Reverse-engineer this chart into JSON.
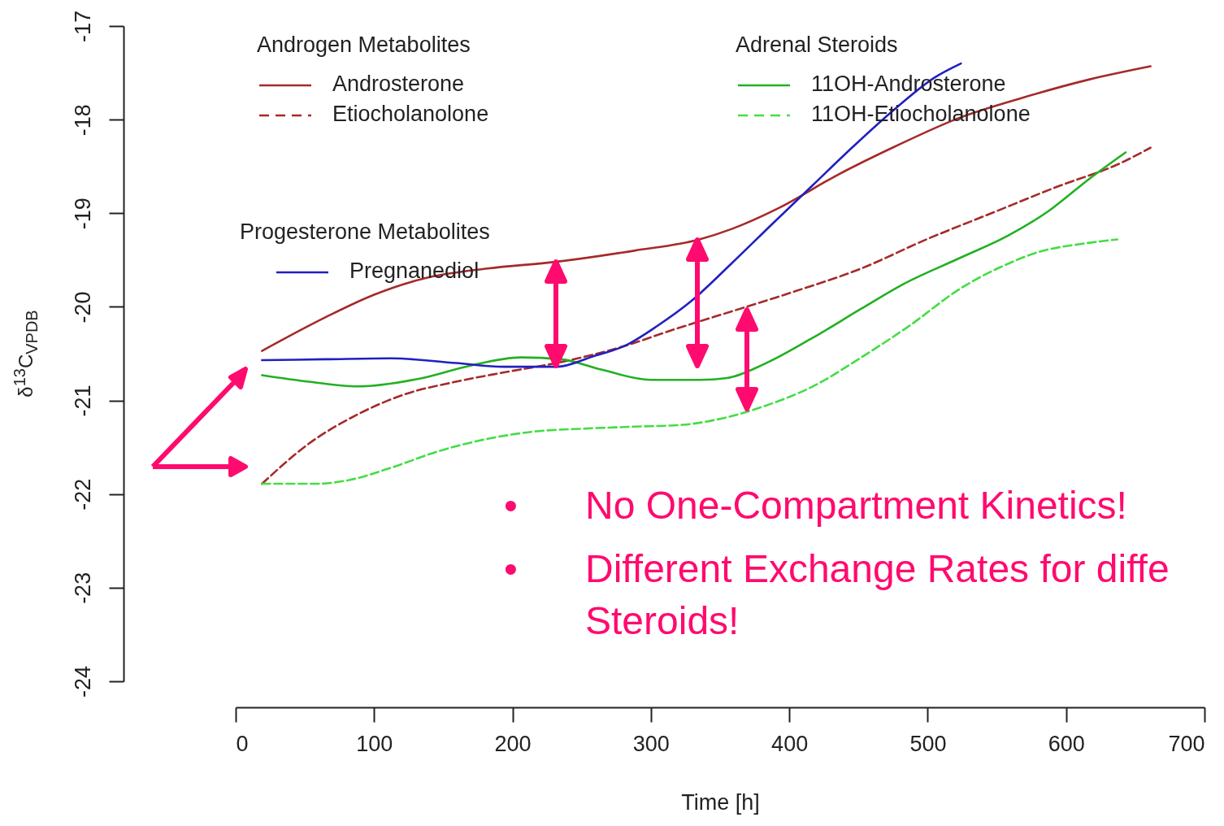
{
  "chart_data": {
    "type": "line",
    "xlabel": "Time [h]",
    "ylabel": "δ$^{13}$C$_{VPDB}$",
    "xlim": [
      0,
      700
    ],
    "xticks": [
      0,
      100,
      200,
      300,
      400,
      500,
      600,
      700
    ],
    "ylim": [
      -24,
      -17
    ],
    "yticks": [
      -24,
      -23,
      -22,
      -21,
      -20,
      -19,
      -18,
      -17
    ],
    "grid": false,
    "legend": "top left",
    "annotations": [
      "Androgen Metabolites",
      "Adrenal Steroids",
      "Progesterone Metabolites",
      "• No One-Compartment Kinetics!",
      "• Different Exchange Rates for diffe Steroids!"
    ],
    "series": [
      {
        "name": "Androsterone",
        "color": "#a52a2a",
        "line_style": "solid",
        "x": [
          19,
          65,
          100,
          135,
          182,
          231,
          288,
          335,
          358,
          393,
          435,
          476,
          523,
          570,
          617,
          661
        ],
        "values": [
          -20.47,
          -20.11,
          -19.87,
          -19.7,
          -19.59,
          -19.52,
          -19.4,
          -19.28,
          -19.17,
          -18.94,
          -18.59,
          -18.29,
          -17.98,
          -17.76,
          -17.57,
          -17.43
        ]
      },
      {
        "name": "Etiocholanolone",
        "color": "#a52a2a",
        "line_style": "dashed",
        "x": [
          19,
          53,
          88,
          123,
          159,
          194,
          235,
          276,
          317,
          358,
          405,
          452,
          499,
          546,
          593,
          640,
          661
        ],
        "values": [
          -21.89,
          -21.46,
          -21.15,
          -20.93,
          -20.8,
          -20.7,
          -20.59,
          -20.44,
          -20.24,
          -20.05,
          -19.83,
          -19.59,
          -19.28,
          -19.0,
          -18.72,
          -18.46,
          -18.3
        ]
      },
      {
        "name": "11OH-Androsterone",
        "color": "#22b022",
        "line_style": "solid",
        "x": [
          19,
          53,
          88,
          135,
          169,
          206,
          235,
          264,
          300,
          335,
          355,
          382,
          417,
          452,
          482,
          523,
          558,
          587,
          617,
          643
        ],
        "values": [
          -20.73,
          -20.8,
          -20.85,
          -20.76,
          -20.63,
          -20.54,
          -20.56,
          -20.67,
          -20.78,
          -20.78,
          -20.76,
          -20.61,
          -20.33,
          -20.02,
          -19.76,
          -19.48,
          -19.24,
          -18.98,
          -18.63,
          -18.35
        ]
      },
      {
        "name": "11OH-Etiocholanolone",
        "color": "#44dd44",
        "line_style": "dashed",
        "x": [
          19,
          59,
          82,
          112,
          147,
          182,
          217,
          253,
          288,
          323,
          352,
          382,
          417,
          452,
          487,
          523,
          558,
          581,
          610,
          637
        ],
        "values": [
          -21.89,
          -21.89,
          -21.85,
          -21.72,
          -21.54,
          -21.41,
          -21.33,
          -21.3,
          -21.28,
          -21.26,
          -21.19,
          -21.06,
          -20.85,
          -20.54,
          -20.2,
          -19.81,
          -19.54,
          -19.41,
          -19.33,
          -19.28
        ]
      },
      {
        "name": "Pregnanediol",
        "color": "#2020c0",
        "line_style": "solid",
        "x": [
          19,
          65,
          112,
          159,
          194,
          232,
          258,
          282,
          305,
          329,
          358,
          388,
          417,
          446,
          476,
          505,
          524
        ],
        "values": [
          -20.57,
          -20.56,
          -20.55,
          -20.6,
          -20.64,
          -20.64,
          -20.53,
          -20.41,
          -20.2,
          -19.94,
          -19.54,
          -19.11,
          -18.7,
          -18.29,
          -17.89,
          -17.55,
          -17.4
        ]
      }
    ]
  }
}
